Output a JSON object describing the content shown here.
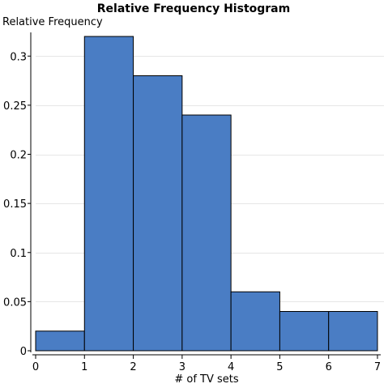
{
  "chart_data": {
    "type": "bar",
    "title": "Relative Frequency Histogram",
    "xlabel": "# of TV sets",
    "ylabel": "Relative Frequency",
    "bins": [
      {
        "start": 0,
        "end": 1,
        "value": 0.02
      },
      {
        "start": 1,
        "end": 2,
        "value": 0.32
      },
      {
        "start": 2,
        "end": 3,
        "value": 0.28
      },
      {
        "start": 3,
        "end": 4,
        "value": 0.24
      },
      {
        "start": 4,
        "end": 5,
        "value": 0.06
      },
      {
        "start": 5,
        "end": 6,
        "value": 0.04
      },
      {
        "start": 6,
        "end": 7,
        "value": 0.04
      }
    ],
    "xlim": [
      0,
      7
    ],
    "ylim": [
      0,
      0.32
    ],
    "x_ticks": [
      "0",
      "1",
      "2",
      "3",
      "4",
      "5",
      "6",
      "7"
    ],
    "y_ticks": [
      {
        "value": 0,
        "label": "0"
      },
      {
        "value": 0.05,
        "label": "0.05"
      },
      {
        "value": 0.1,
        "label": "0.1"
      },
      {
        "value": 0.15,
        "label": "0.15"
      },
      {
        "value": 0.2,
        "label": "0.2"
      },
      {
        "value": 0.25,
        "label": "0.25"
      },
      {
        "value": 0.3,
        "label": "0.3"
      }
    ],
    "grid": true,
    "bar_color": "#4a7dc4"
  }
}
